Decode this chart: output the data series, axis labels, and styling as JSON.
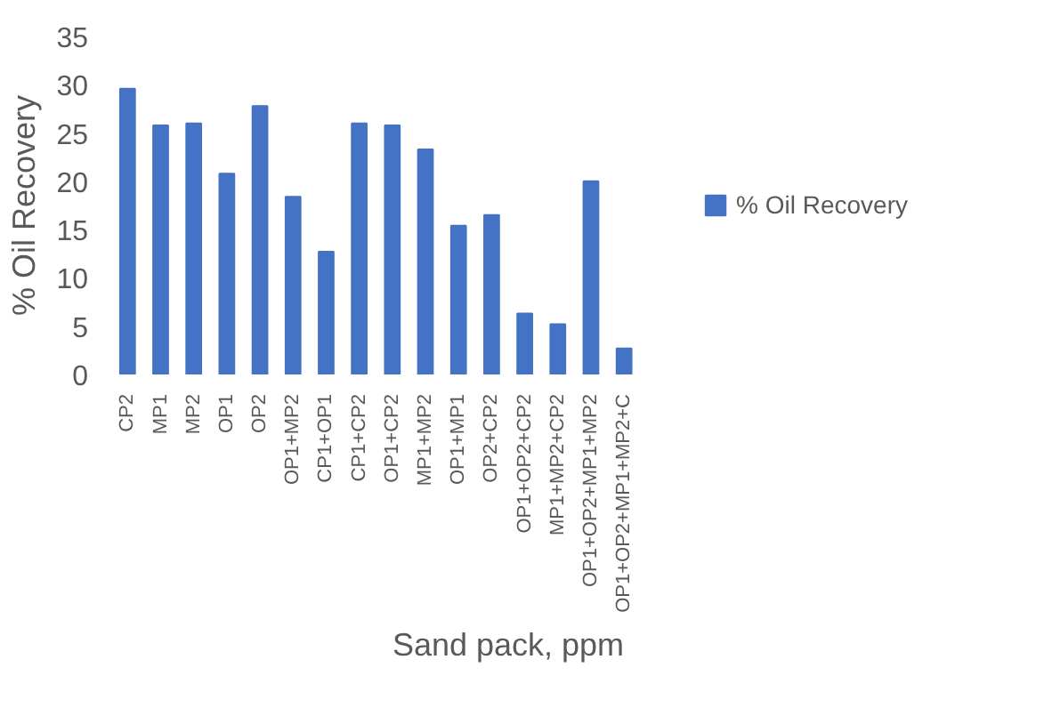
{
  "chart_data": {
    "type": "bar",
    "xlabel": "Sand pack, ppm",
    "ylabel": "% Oil Recovery",
    "categories": [
      "CP2",
      "MP1",
      "MP2",
      "OP1",
      "OP2",
      "OP1+MP2",
      "CP1+OP1",
      "CP1+CP2",
      "OP1+CP2",
      "MP1+MP2",
      "OP1+MP1",
      "OP2+CP2",
      "OP1+OP2+CP2",
      "MP1+MP2+CP2",
      "OP1+OP2+MP1+MP2",
      "OP1+OP2+MP1+MP2+C"
    ],
    "series": [
      {
        "name": "% Oil Recovery",
        "color": "#4472c4",
        "values": [
          29.6,
          25.8,
          26,
          20.8,
          27.8,
          18.4,
          12.7,
          26,
          25.8,
          23.3,
          15.4,
          16.5,
          6.3,
          5.2,
          20,
          2.7
        ]
      }
    ],
    "ylim": [
      0,
      35
    ],
    "yticks": [
      0,
      5,
      10,
      15,
      20,
      25,
      30,
      35
    ],
    "grid": false,
    "legend": "right"
  }
}
